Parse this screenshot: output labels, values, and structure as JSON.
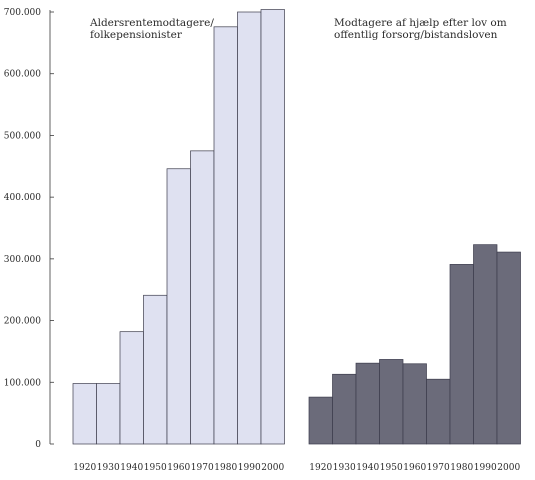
{
  "chart_data": {
    "type": "bar",
    "ylim": [
      0,
      700000
    ],
    "yticks": [
      {
        "value": 0,
        "label": "0"
      },
      {
        "value": 100000,
        "label": "100.000"
      },
      {
        "value": 200000,
        "label": "200.000"
      },
      {
        "value": 300000,
        "label": "300.000"
      },
      {
        "value": 400000,
        "label": "400.000"
      },
      {
        "value": 500000,
        "label": "500.000"
      },
      {
        "value": 600000,
        "label": "600.000"
      },
      {
        "value": 700000,
        "label": "700.000"
      }
    ],
    "grid": false,
    "groups": [
      {
        "annotation": [
          "Aldersrentemodtagere/",
          "folkepensionister"
        ],
        "color": "#dfe1f1",
        "categories": [
          "1920",
          "1930",
          "1940",
          "1950",
          "1960",
          "1970",
          "1980",
          "1990",
          "2000"
        ],
        "values": [
          98000,
          98000,
          182000,
          241000,
          446000,
          475000,
          676000,
          700000,
          704000
        ]
      },
      {
        "annotation": [
          "Modtagere af hjælp efter lov om",
          "offentlig forsorg/bistandsloven"
        ],
        "color": "#6b6b7a",
        "categories": [
          "1920",
          "1930",
          "1940",
          "1950",
          "1960",
          "1970",
          "1980",
          "1990",
          "2000"
        ],
        "values": [
          76000,
          113000,
          131000,
          137000,
          130000,
          105000,
          291000,
          323000,
          311000
        ]
      }
    ]
  }
}
